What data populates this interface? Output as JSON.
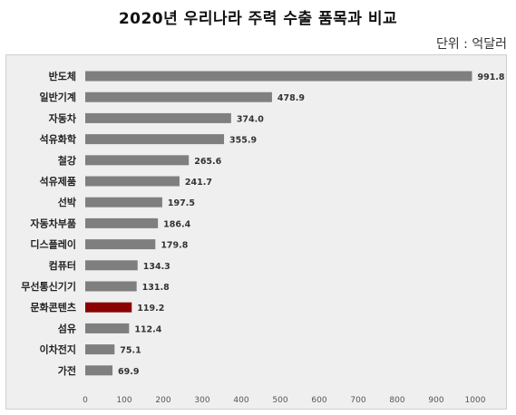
{
  "title": "2020년 우리나라 주력 수출 품목과 비교",
  "unit_label": "단위 : 억달러",
  "chart_data": {
    "type": "bar",
    "orientation": "horizontal",
    "categories": [
      "반도체",
      "일반기계",
      "자동차",
      "석유화학",
      "철강",
      "석유제품",
      "선박",
      "자동차부품",
      "디스플레이",
      "컴퓨터",
      "무선통신기기",
      "문화콘텐츠",
      "섬유",
      "이차전지",
      "가전"
    ],
    "values": [
      991.8,
      478.9,
      374.0,
      355.9,
      265.6,
      241.7,
      197.5,
      186.4,
      179.8,
      134.3,
      131.8,
      119.2,
      112.4,
      75.1,
      69.9
    ],
    "value_labels": [
      "991.8",
      "478.9",
      "374.0",
      "355.9",
      "265.6",
      "241.7",
      "197.5",
      "186.4",
      "179.8",
      "134.3",
      "131.8",
      "119.2",
      "112.4",
      "75.1",
      "69.9"
    ],
    "x_ticks": [
      "0",
      "100",
      "200",
      "300",
      "400",
      "500",
      "600",
      "700",
      "800",
      "900",
      "1000"
    ],
    "xlim": [
      0,
      1000
    ],
    "bar_color": "#7f7f7f",
    "highlight_color": "#8b0000",
    "highlight_category": "문화콘텐츠",
    "grid": false
  }
}
